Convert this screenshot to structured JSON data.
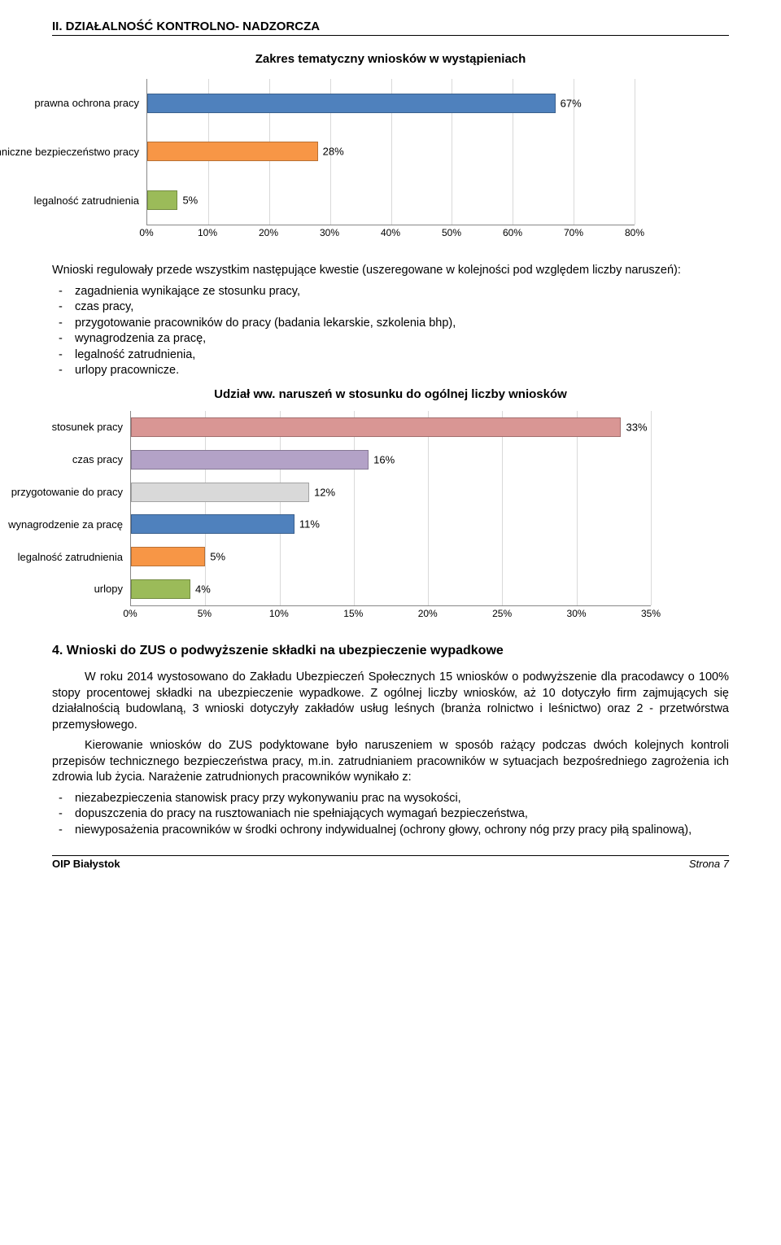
{
  "header": "II. DZIAŁALNOŚĆ KONTROLNO- NADZORCZA",
  "chart1": {
    "title": "Zakres tematyczny wniosków w wystąpieniach",
    "type": "bar",
    "items": [
      {
        "label": "prawna ochrona pracy",
        "value": 67,
        "color": "#4f81bd"
      },
      {
        "label": "techniczne bezpieczeństwo pracy",
        "value": 28,
        "color": "#f79646"
      },
      {
        "label": "legalność zatrudnienia",
        "value": 5,
        "color": "#9bbb59"
      }
    ],
    "xmax": 80,
    "xstep": 10,
    "xticks": [
      "0%",
      "10%",
      "20%",
      "30%",
      "40%",
      "50%",
      "60%",
      "70%",
      "80%"
    ],
    "grid_color": "#d9d9d9"
  },
  "para1": "Wnioski regulowały przede wszystkim następujące kwestie (uszeregowane w kolejności pod względem liczby naruszeń):",
  "list1": [
    "zagadnienia wynikające ze stosunku pracy,",
    "czas pracy,",
    "przygotowanie pracowników do pracy (badania lekarskie, szkolenia bhp),",
    "wynagrodzenia za pracę,",
    "legalność zatrudnienia,",
    "urlopy pracownicze."
  ],
  "chart2": {
    "title": "Udział ww. naruszeń w stosunku do ogólnej liczby wniosków",
    "type": "bar",
    "items": [
      {
        "label": "stosunek pracy",
        "value": 33,
        "color": "#d99694"
      },
      {
        "label": "czas pracy",
        "value": 16,
        "color": "#b3a2c7"
      },
      {
        "label": "przygotowanie do pracy",
        "value": 12,
        "color": "#d9d9d9"
      },
      {
        "label": "wynagrodzenie za pracę",
        "value": 11,
        "color": "#4f81bd"
      },
      {
        "label": "legalność zatrudnienia",
        "value": 5,
        "color": "#f79646"
      },
      {
        "label": "urlopy",
        "value": 4,
        "color": "#9bbb59"
      }
    ],
    "xmax": 35,
    "xstep": 5,
    "xticks": [
      "0%",
      "5%",
      "10%",
      "15%",
      "20%",
      "25%",
      "30%",
      "35%"
    ],
    "grid_color": "#d9d9d9"
  },
  "heading4": "4.   Wnioski do ZUS o podwyższenie składki na ubezpieczenie wypadkowe",
  "para2": "W roku 2014 wystosowano do Zakładu Ubezpieczeń Społecznych 15 wniosków o podwyższenie dla pracodawcy o 100% stopy procentowej składki na ubezpieczenie wypadkowe. Z ogólnej liczby wniosków, aż 10 dotyczyło firm zajmujących się działalnością budowlaną, 3 wnioski dotyczyły zakładów usług leśnych (branża rolnictwo i leśnictwo) oraz 2 - przetwórstwa przemysłowego.",
  "para3": "Kierowanie wniosków do ZUS podyktowane było naruszeniem w sposób rażący podczas dwóch kolejnych kontroli przepisów technicznego bezpieczeństwa pracy, m.in. zatrudnianiem pracowników w sytuacjach bezpośredniego zagrożenia ich zdrowia lub życia. Narażenie zatrudnionych pracowników wynikało z:",
  "list2": [
    "niezabezpieczenia stanowisk pracy przy wykonywaniu prac na wysokości,",
    "dopuszczenia do pracy na rusztowaniach nie spełniających wymagań bezpieczeństwa,",
    "niewyposażenia pracowników w środki ochrony indywidualnej (ochrony głowy, ochrony nóg przy pracy piłą spalinową),"
  ],
  "footer": {
    "left": "OIP Białystok",
    "right": "Strona 7"
  }
}
